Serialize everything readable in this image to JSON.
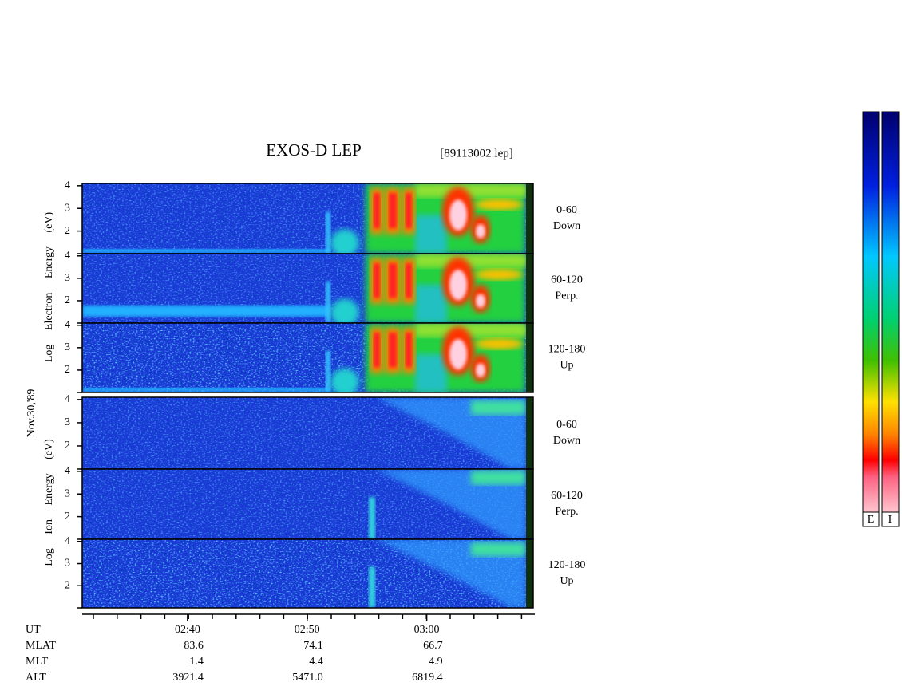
{
  "title": "EXOS-D LEP",
  "file": "[89113002.lep]",
  "date": "Nov.30,'89",
  "energy_axis": {
    "ylim": [
      1,
      4.1
    ],
    "yticks": [
      2,
      3,
      4
    ]
  },
  "time_axis": {
    "xlim": [
      151.2,
      188.9
    ],
    "xticks": [
      {
        "value": 160,
        "label": "02:40"
      },
      {
        "value": 170,
        "label": "02:50"
      },
      {
        "value": 180,
        "label": "03:00"
      }
    ]
  },
  "electron": {
    "label": "Log Electron Energy (eV)",
    "panels": [
      {
        "range": "0-60",
        "dir": "Down"
      },
      {
        "range": "60-120",
        "dir": "Perp."
      },
      {
        "range": "120-180",
        "dir": "Up"
      }
    ]
  },
  "ion": {
    "label": "Log Ion Energy (eV)",
    "panels": [
      {
        "range": "0-60",
        "dir": "Down"
      },
      {
        "range": "60-120",
        "dir": "Perp."
      },
      {
        "range": "120-180",
        "dir": "Up"
      }
    ]
  },
  "orbit": {
    "rows": [
      {
        "name": "UT",
        "values": []
      },
      {
        "name": "MLAT",
        "values": [
          "83.6",
          "74.1",
          "66.7"
        ]
      },
      {
        "name": "MLT",
        "values": [
          "1.4",
          "4.4",
          "4.9"
        ]
      },
      {
        "name": "ALT",
        "values": [
          "3921.4",
          "5471.0",
          "6819.4"
        ]
      }
    ]
  },
  "colorbars": [
    "E",
    "I"
  ]
}
